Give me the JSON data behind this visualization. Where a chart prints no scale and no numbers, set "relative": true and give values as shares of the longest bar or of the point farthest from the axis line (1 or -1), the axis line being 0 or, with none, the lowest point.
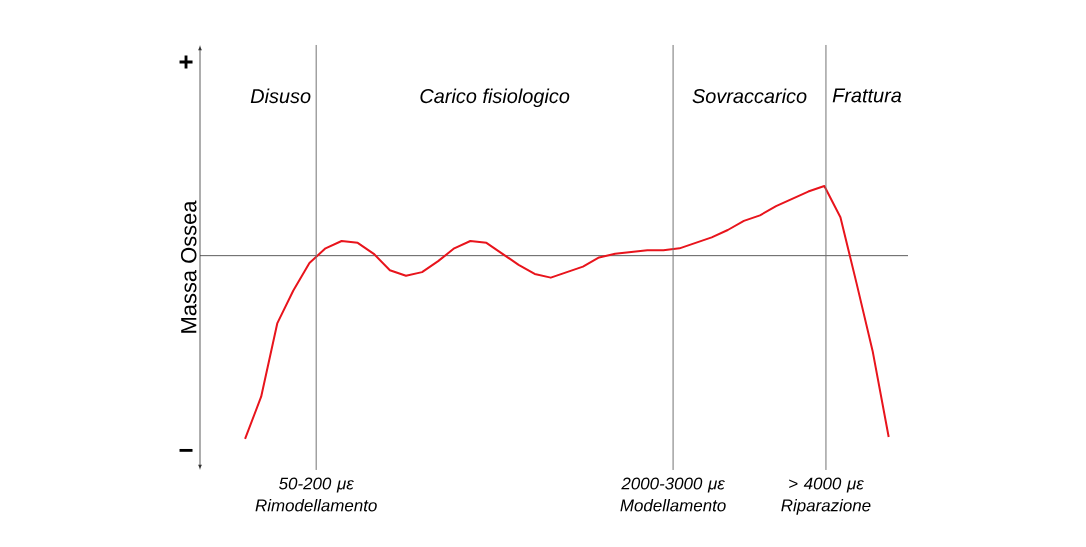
{
  "chart_data": {
    "type": "line",
    "relative": true,
    "ylabel": "Massa Ossea",
    "categories": [
      null,
      null,
      null,
      null,
      null,
      null,
      null,
      null,
      null,
      null,
      null,
      null,
      null,
      null,
      null,
      null,
      null,
      null,
      null,
      null,
      null,
      null,
      null,
      null,
      null,
      null,
      null,
      null,
      null,
      null,
      null,
      null,
      null,
      null,
      null,
      null,
      null,
      null,
      null,
      null,
      null
    ],
    "series": [
      {
        "color": "#e8141c",
        "values": [
          -1,
          -0.77,
          -0.37,
          -0.19,
          -0.04,
          0.04,
          0.08,
          0.07,
          0.01,
          -0.08,
          -0.11,
          -0.09,
          -0.03,
          0.04,
          0.08,
          0.07,
          0.01,
          -0.05,
          -0.1,
          -0.12,
          -0.09,
          -0.06,
          -0.01,
          0.01,
          0.02,
          0.03,
          0.03,
          0.04,
          0.07,
          0.1,
          0.14,
          0.19,
          0.22,
          0.27,
          0.31,
          0.35,
          0.38,
          0.21,
          -0.15,
          -0.52,
          -0.99
        ]
      }
    ],
    "marker": "none",
    "line_style": "solid",
    "annotations": [
      "+",
      "−",
      "Disuso",
      "Carico fisiologico",
      "Sovraccarico",
      "Frattura",
      "50-200 με Rimodellamento",
      "2000-3000 με Modellamento",
      "> 4000 με Riparazione"
    ]
  }
}
